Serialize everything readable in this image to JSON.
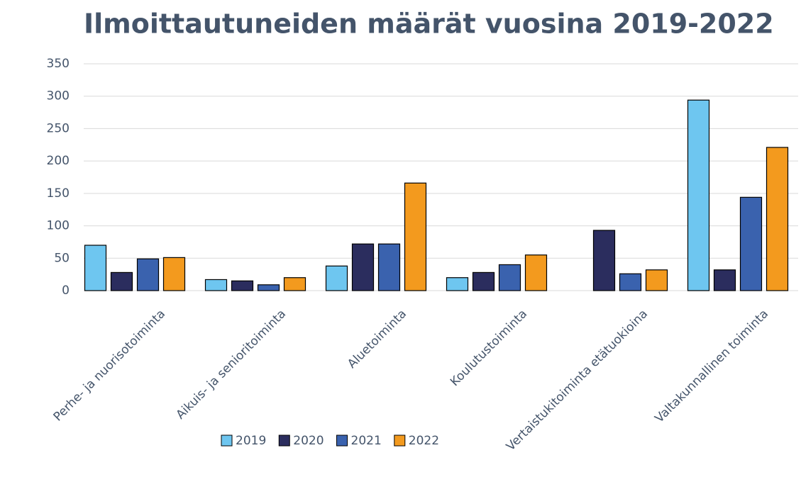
{
  "chart_data": {
    "type": "bar",
    "title": "Ilmoittautuneiden määrät vuosina 2019-2022",
    "categories": [
      "Perhe- ja nuorisotoiminta",
      "Aikuis- ja senioritoiminta",
      "Aluetoiminta",
      "Koulutustoiminta",
      "Vertaistukitoiminta etätuokioina",
      "Valtakunnallinen toiminta"
    ],
    "series": [
      {
        "name": "2019",
        "color": "#6ec6f0",
        "values": [
          70,
          17,
          38,
          20,
          null,
          294
        ]
      },
      {
        "name": "2020",
        "color": "#2b2d5e",
        "values": [
          28,
          15,
          72,
          28,
          93,
          32
        ]
      },
      {
        "name": "2021",
        "color": "#3a62ae",
        "values": [
          49,
          9,
          72,
          40,
          26,
          144
        ]
      },
      {
        "name": "2022",
        "color": "#f39a1e",
        "values": [
          51,
          20,
          166,
          55,
          32,
          221
        ]
      }
    ],
    "ylim": [
      0,
      350
    ],
    "yticks": [
      0,
      50,
      100,
      150,
      200,
      250,
      300,
      350
    ],
    "grid": true,
    "legend": "bottom"
  }
}
